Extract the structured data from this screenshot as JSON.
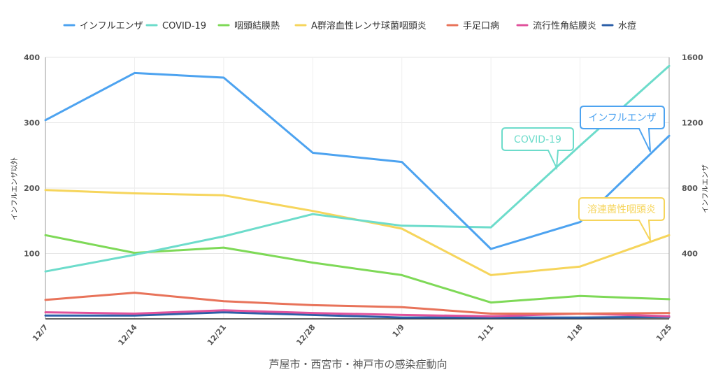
{
  "chart_data": {
    "type": "line",
    "title": "芦屋市・西宮市・神戸市の感染症動向",
    "categories": [
      "12/7",
      "12/14",
      "12/21",
      "12/28",
      "1/9",
      "1/11",
      "1/18",
      "1/25"
    ],
    "y_left": {
      "label": "インフルエンザ以外",
      "ticks": [
        100,
        200,
        300,
        400
      ],
      "range": [
        0,
        400
      ]
    },
    "y_right": {
      "label": "インフルエンザ",
      "ticks": [
        400,
        800,
        1200,
        1600
      ],
      "range": [
        0,
        1600
      ]
    },
    "grid": true,
    "legend_position": "top",
    "series": [
      {
        "name": "インフルエンザ",
        "color": "#4da3f0",
        "axis": "left",
        "values": [
          304,
          376,
          369,
          254,
          240,
          107,
          148,
          280
        ]
      },
      {
        "name": "COVID-19",
        "color": "#6ddccb",
        "axis": "right",
        "values": [
          290,
          392,
          505,
          641,
          570,
          560,
          1060,
          1548
        ]
      },
      {
        "name": "咽頭結膜熱",
        "color": "#7ed957",
        "axis": "left",
        "values": [
          128,
          101,
          109,
          86,
          67,
          25,
          35,
          30
        ]
      },
      {
        "name": "A群溶血性レンサ球菌咽頭炎",
        "color": "#f6d55c",
        "axis": "left",
        "values": [
          197,
          192,
          189,
          165,
          138,
          67,
          80,
          128
        ]
      },
      {
        "name": "手足口病",
        "color": "#e8735a",
        "axis": "left",
        "values": [
          29,
          40,
          27,
          21,
          18,
          8,
          8,
          9
        ]
      },
      {
        "name": "流行性角結膜炎",
        "color": "#e0529c",
        "axis": "left",
        "values": [
          10,
          8,
          13,
          9,
          6,
          4,
          8,
          4
        ]
      },
      {
        "name": "水痘",
        "color": "#2c5fa8",
        "axis": "left",
        "values": [
          5,
          5,
          10,
          6,
          2,
          2,
          2,
          3
        ]
      }
    ],
    "annotations": [
      {
        "text": "インフルエンザ",
        "color": "#4da3f0"
      },
      {
        "text": "COVID-19",
        "color": "#6ddccb"
      },
      {
        "text": "溶連菌性咽頭炎",
        "color": "#f6d55c"
      }
    ]
  }
}
